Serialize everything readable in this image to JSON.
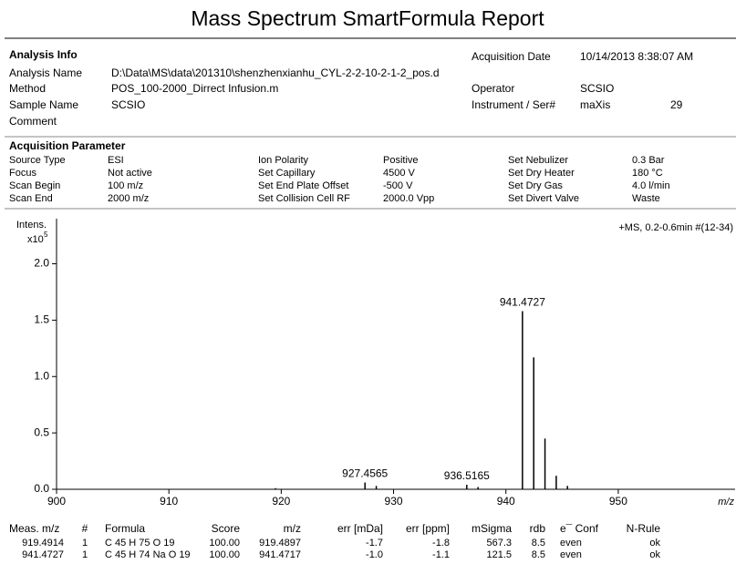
{
  "title": "Mass Spectrum SmartFormula Report",
  "analysis_info": {
    "heading": "Analysis Info",
    "left": [
      {
        "label": "Analysis Name",
        "value": "D:\\Data\\MS\\data\\201310\\shenzhenxianhu_CYL-2-2-10-2-1-2_pos.d"
      },
      {
        "label": "Method",
        "value": "POS_100-2000_Dirrect Infusion.m"
      },
      {
        "label": "Sample Name",
        "value": "SCSIO"
      },
      {
        "label": "Comment"
      }
    ],
    "right": [
      {
        "label": "Acquisition Date",
        "value": "10/14/2013 8:38:07 AM"
      },
      {
        "label": "Operator",
        "value": "SCSIO"
      },
      {
        "label": "Instrument / Ser#",
        "value": "maXis",
        "serial": "29"
      }
    ]
  },
  "acquisition": {
    "heading": "Acquisition Parameter",
    "rows": [
      [
        "Source Type",
        "ESI",
        "Ion Polarity",
        "Positive",
        "Set Nebulizer",
        "0.3 Bar"
      ],
      [
        "Focus",
        "Not active",
        "Set Capillary",
        "4500 V",
        "Set Dry Heater",
        "180 °C"
      ],
      [
        "Scan Begin",
        "100 m/z",
        "Set End Plate Offset",
        "-500 V",
        "Set Dry Gas",
        "4.0 l/min"
      ],
      [
        "Scan End",
        "2000 m/z",
        "Set Collision Cell RF",
        "2000.0 Vpp",
        "Set Divert Valve",
        "Waste"
      ]
    ]
  },
  "chart_data": {
    "type": "bar",
    "y_label": "Intens.",
    "y_unit": "x10",
    "y_unit_exp": "5",
    "x_label": "m/z",
    "annotation": "+MS, 0.2-0.6min #(12-34)",
    "x": [
      919.4914,
      927.4565,
      928.46,
      936.5165,
      937.52,
      941.4727,
      942.475,
      943.478,
      944.48,
      945.48
    ],
    "values": [
      0.01,
      0.06,
      0.03,
      0.04,
      0.02,
      1.58,
      1.17,
      0.45,
      0.12,
      0.03
    ],
    "peak_labels": [
      null,
      927.4565,
      null,
      936.5165,
      null,
      941.4727,
      null,
      null,
      null,
      null
    ],
    "color": "#000000",
    "xlim": [
      900,
      960.4
    ],
    "xticks": [
      900,
      910,
      920,
      930,
      940,
      950
    ],
    "ylim": [
      0,
      2.4
    ],
    "yticks": [
      {
        "value": 0,
        "label": "0.0"
      },
      0.5,
      {
        "value": 1,
        "label": "1.0"
      },
      1.5,
      {
        "value": 2,
        "label": "2.0"
      }
    ]
  },
  "table": {
    "header": [
      "Meas. m/z",
      "#",
      "Formula",
      "Score",
      "m/z",
      "err [mDa]",
      "err [ppm]",
      "mSigma",
      "rdb",
      "e¯ Conf",
      "N-Rule"
    ],
    "rows": [
      [
        "919.4914",
        "1",
        "C 45 H 75 O 19",
        "100.00",
        "919.4897",
        "-1.7",
        "-1.8",
        "567.3",
        "8.5",
        "even",
        "ok"
      ],
      [
        "941.4727",
        "1",
        "C 45 H 74 Na O 19",
        "100.00",
        "941.4717",
        "-1.0",
        "-1.1",
        "121.5",
        "8.5",
        "even",
        "ok"
      ]
    ]
  }
}
